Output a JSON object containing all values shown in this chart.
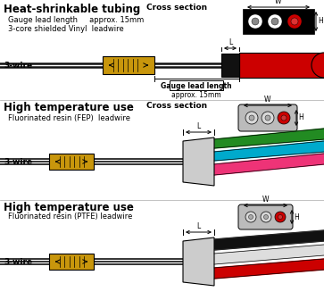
{
  "bg_color": "#ffffff",
  "title1": "Heat-shrinkable tubing",
  "title2": "High temperature use",
  "title3": "High temperature use",
  "sub1a": "Gauge lead length     approx. 15mm",
  "sub1b": "3-core shielded Vinyl  leadwire",
  "sub2": "Fluorinated resin (FEP)  leadwire",
  "sub3": "Fluorinated resin (PTFE) leadwire",
  "label_3wire": "3-wire",
  "label_cross": "Cross section",
  "label_L": "L",
  "label_W": "W",
  "label_H": "H",
  "label_gauge": "Gauge lead length",
  "label_approx": "approx. 15mm",
  "gauge_color": "#c8960c",
  "wire_black": "#111111",
  "wire_red": "#cc0000",
  "wire_green": "#228B22",
  "wire_blue": "#00aacc",
  "wire_pink": "#ee3377",
  "wire_white": "#dddddd",
  "connector_gray": "#bbbbbb",
  "connector_light": "#cccccc"
}
